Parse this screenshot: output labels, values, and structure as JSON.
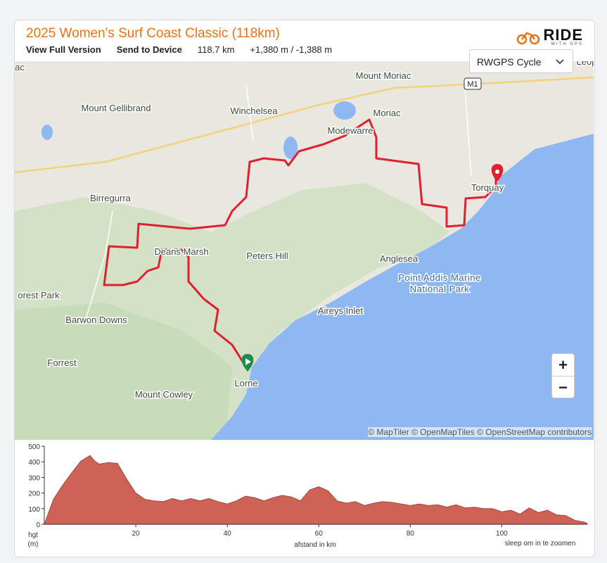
{
  "header": {
    "title": "2025 Women's Surf Coast Classic (118km)",
    "links": [
      "View Full Version",
      "Send to Device"
    ],
    "distance": "118.7 km",
    "elevation": "+1,380 m / -1,388 m",
    "logo": {
      "main": "RIDE",
      "sub": "WITH GPS"
    }
  },
  "map": {
    "style_selector": "RWGPS Cycle",
    "zoom_in": "+",
    "zoom_out": "−",
    "attribution": "© MapTiler © OpenMapTiles © OpenStreetMap contributors",
    "road_shield": "M1",
    "labels": [
      "Mount Moriac",
      "Mount Gellibrand",
      "Winchelsea",
      "Moriac",
      "Modewarre",
      "Torquay",
      "Birregurra",
      "Deans Marsh",
      "Peters Hill",
      "Anglesea",
      "Point Addis Marine",
      "National Park",
      "orest Park",
      "Aireys Inlet",
      "Barwon Downs",
      "Forrest",
      "Lorne",
      "Mount Cowley",
      "ac",
      "Leop"
    ]
  },
  "chart_data": {
    "type": "area",
    "x_label": "afstand in km",
    "y_label": [
      "hgt",
      "(m)"
    ],
    "hint": "sleep om in te zoomen",
    "color": "#cf6257",
    "x": [
      0,
      2,
      4,
      6,
      8,
      10,
      11,
      12,
      14,
      16,
      18,
      20,
      22,
      24,
      26,
      28,
      30,
      32,
      34,
      36,
      38,
      40,
      42,
      44,
      46,
      48,
      50,
      52,
      54,
      56,
      58,
      60,
      62,
      64,
      66,
      68,
      70,
      72,
      74,
      76,
      78,
      80,
      82,
      84,
      86,
      88,
      90,
      92,
      94,
      96,
      98,
      100,
      102,
      104,
      106,
      108,
      110,
      112,
      114,
      116,
      118,
      118.7
    ],
    "values": [
      0,
      160,
      250,
      330,
      405,
      440,
      405,
      385,
      395,
      390,
      290,
      200,
      160,
      150,
      145,
      165,
      150,
      165,
      150,
      165,
      145,
      130,
      150,
      180,
      170,
      150,
      170,
      185,
      175,
      150,
      220,
      240,
      215,
      150,
      135,
      145,
      120,
      135,
      145,
      140,
      130,
      120,
      130,
      120,
      125,
      110,
      125,
      105,
      110,
      100,
      100,
      80,
      90,
      65,
      105,
      75,
      90,
      60,
      55,
      25,
      15,
      5
    ],
    "xlim": [
      0,
      118.7
    ],
    "ylim": [
      0,
      500
    ],
    "xticks": [
      20,
      40,
      60,
      80,
      100
    ],
    "yticks": [
      0,
      100,
      200,
      300,
      400,
      500
    ]
  }
}
